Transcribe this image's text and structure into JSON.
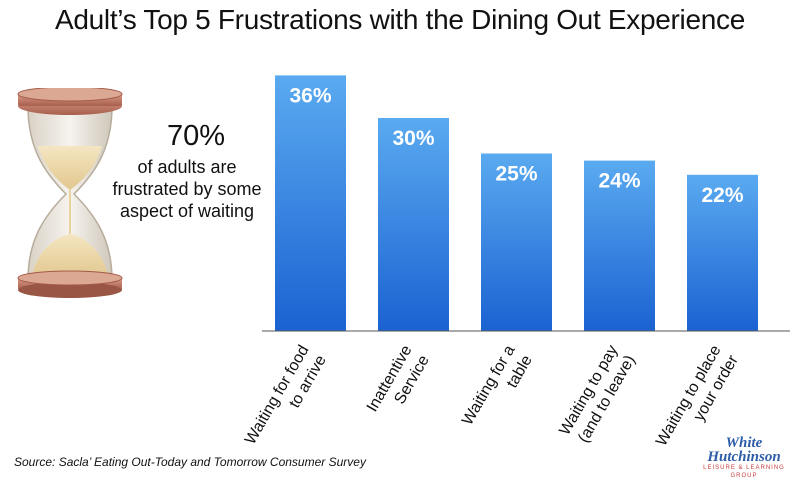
{
  "title": "Adult’s Top 5 Frustrations with the Dining Out Experience",
  "callout": {
    "value": "70%",
    "text": "of adults are frustrated by some aspect of waiting"
  },
  "source": "Source:  Sacla’ Eating Out-Today and Tomorrow Consumer Survey",
  "logo": {
    "line1": "White",
    "line2": "Hutchinson",
    "line3": "LEISURE & LEARNING GROUP"
  },
  "colors": {
    "bar_top": "#5aaaf0",
    "bar_bottom": "#1b62d2",
    "axis": "#555555"
  },
  "icons": {
    "hourglass": "hourglass-icon"
  },
  "chart_data": {
    "type": "bar",
    "categories": [
      "Waiting for food to arrive",
      "Inattentive Service",
      "Waiting for a table",
      "Waiting to pay (and to leave)",
      "Waiting to place your order"
    ],
    "category_lines": [
      [
        "Waiting for food",
        "to arrive"
      ],
      [
        "Inattentive",
        "Service"
      ],
      [
        "Waiting for a",
        "table"
      ],
      [
        "Waiting to pay",
        "(and to leave)"
      ],
      [
        "Waiting to place",
        "your order"
      ]
    ],
    "values": [
      36,
      30,
      25,
      24,
      22
    ],
    "data_labels": [
      "36%",
      "30%",
      "25%",
      "24%",
      "22%"
    ],
    "ylim": [
      0,
      40
    ],
    "grid": false,
    "legend": "none",
    "title": "",
    "xlabel": "",
    "ylabel": ""
  }
}
